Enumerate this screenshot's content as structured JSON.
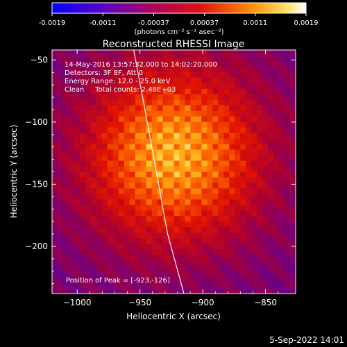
{
  "colorbar": {
    "ticks": [
      "-0.0019",
      "-0.0011",
      "-0.00037",
      "0.00037",
      "0.0011",
      "0.0019"
    ],
    "unit_label": "(photons cm⁻² s⁻¹ asec⁻²)"
  },
  "plot": {
    "title": "Reconstructed RHESSI Image",
    "info_lines": [
      "14-May-2016 13:57:32.000 to 14:02:20.000",
      "Detectors: 3F 8F, Att 0",
      "Energy Range: 12.0 - 25.0 keV",
      "Clean     Total counts: 2.48E+03"
    ],
    "peak_label": "Position of Peak = [-923,-126]",
    "footer": "5-Sep-2022 14:01"
  },
  "chart_data": {
    "type": "heatmap",
    "title": "Reconstructed RHESSI Image",
    "xlabel": "Heliocentric X (arcsec)",
    "ylabel": "Heliocentric Y (arcsec)",
    "xlim": [
      -1020,
      -826
    ],
    "ylim": [
      -238,
      -42
    ],
    "x_ticks": [
      -1000,
      -950,
      -900,
      -850
    ],
    "y_ticks": [
      -50,
      -100,
      -150,
      -200
    ],
    "x_tick_labels": [
      "−1000",
      "−950",
      "−900",
      "−850"
    ],
    "y_tick_labels": [
      "−50",
      "−100",
      "−150",
      "−200"
    ],
    "peak": [
      -923,
      -126
    ],
    "limb_points": [
      [
        -955,
        -42
      ],
      [
        -946,
        -90
      ],
      [
        -937,
        -140
      ],
      [
        -928,
        -190
      ],
      [
        -915,
        -238
      ]
    ],
    "colorbar_range": [
      -0.0019,
      0.0019
    ],
    "colors": {
      "low": "#0a0aff",
      "mid_low": "#6a0080",
      "mid": "#c00010",
      "mid_high": "#ff7a00",
      "high": "#ffffff"
    }
  }
}
